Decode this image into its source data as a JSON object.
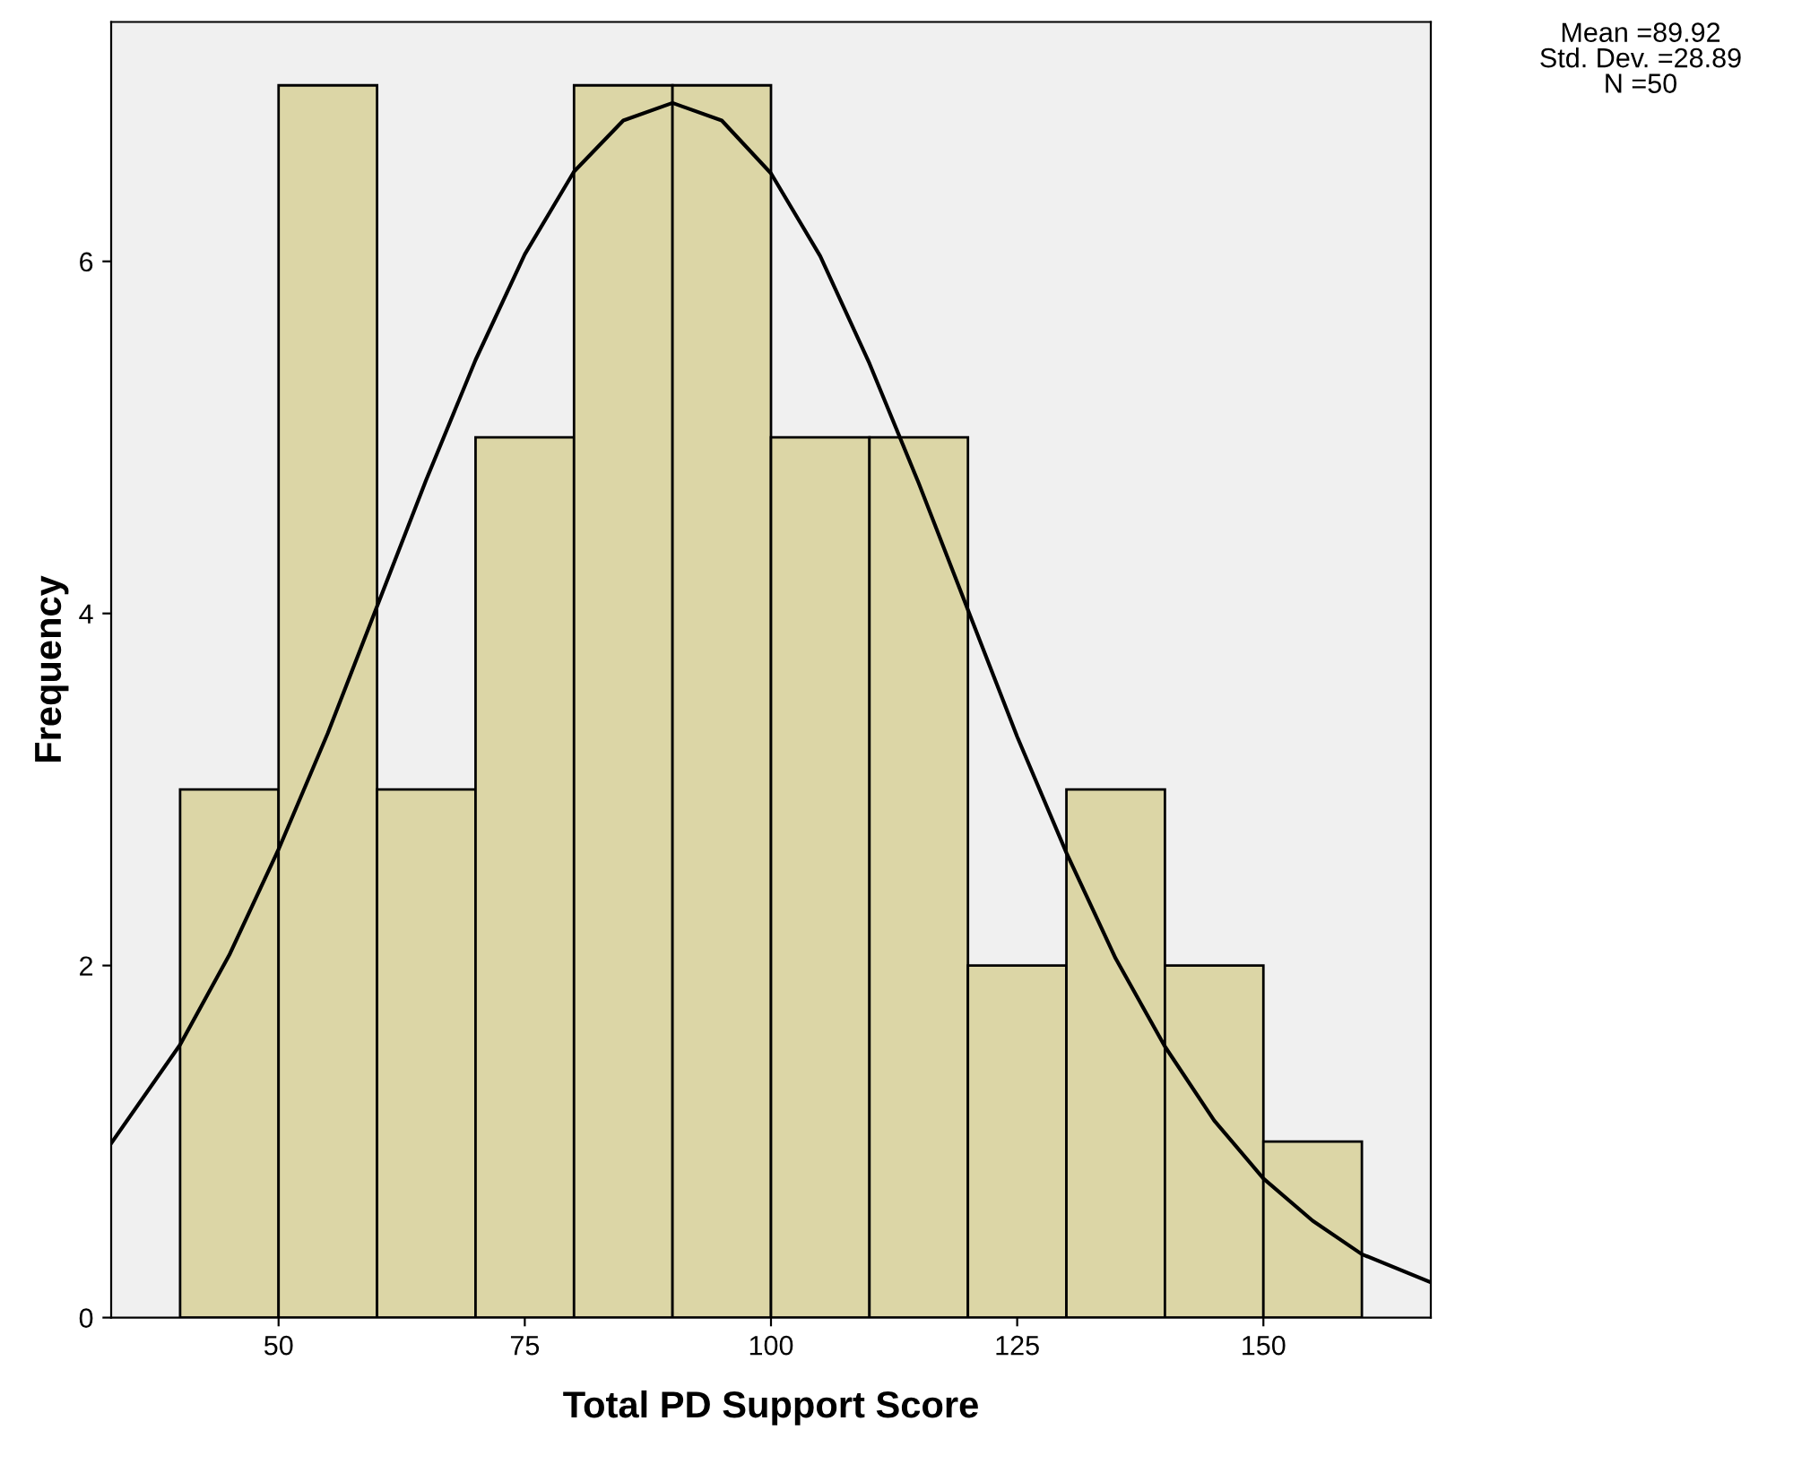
{
  "chart_data": {
    "type": "histogram",
    "xlabel": "Total PD Support Score",
    "ylabel": "Frequency",
    "bins": [
      40,
      50,
      60,
      70,
      80,
      90,
      100,
      110,
      120,
      130,
      140,
      150,
      160
    ],
    "values": [
      3,
      7,
      3,
      5,
      7,
      7,
      5,
      5,
      2,
      3,
      2,
      1
    ],
    "color": "#dcd6a6",
    "series": [
      {
        "type": "line",
        "color": "#000000",
        "x": [
          33,
          40,
          45,
          50,
          55,
          60,
          65,
          70,
          75,
          80,
          85,
          90,
          95,
          100,
          105,
          110,
          115,
          120,
          125,
          130,
          135,
          140,
          145,
          150,
          155,
          160,
          167
        ],
        "values": [
          0.99,
          1.55,
          2.06,
          2.66,
          3.32,
          4.04,
          4.76,
          5.44,
          6.04,
          6.51,
          6.8,
          6.9,
          6.8,
          6.5,
          6.03,
          5.42,
          4.74,
          4.02,
          3.3,
          2.64,
          2.04,
          1.54,
          1.12,
          0.79,
          0.55,
          0.36,
          0.2
        ]
      }
    ],
    "xlim": [
      33,
      167
    ],
    "ylim": [
      0,
      7.36
    ],
    "xticks": [
      50,
      75,
      100,
      125,
      150
    ],
    "yticks": [
      0,
      2,
      4,
      6
    ],
    "grid": false,
    "legend": false,
    "annotations": [
      "Mean =89.92",
      "Std. Dev. =28.89",
      "N =50"
    ]
  }
}
